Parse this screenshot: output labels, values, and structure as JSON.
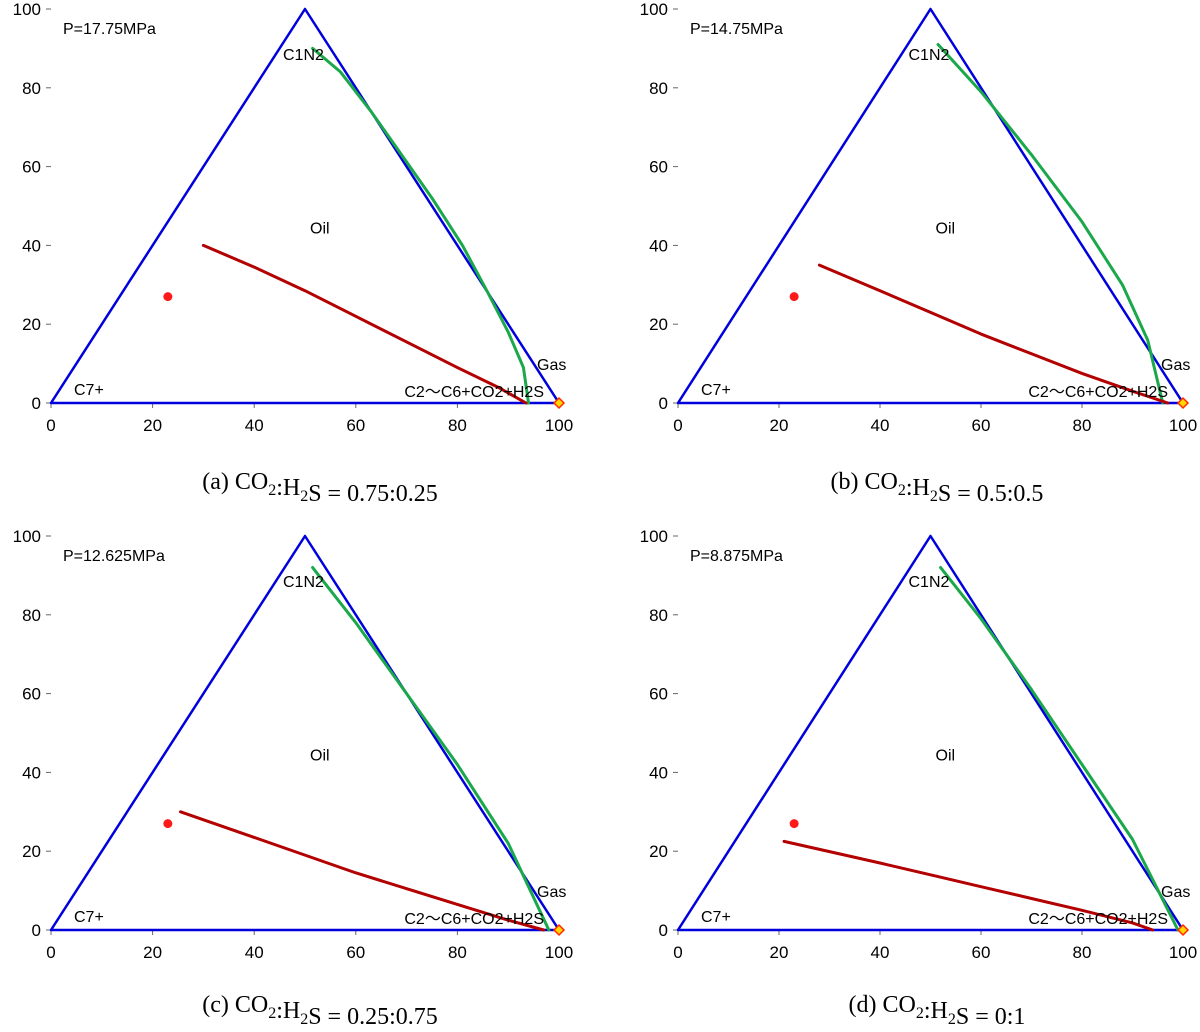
{
  "chart_data": [
    {
      "type": "line",
      "panel_caption": "(a) CO₂:H₂S = 0.75:0.25",
      "pressure_label": "P=17.75MPa",
      "xlim": [
        0,
        100
      ],
      "ylim": [
        0,
        100
      ],
      "xticks": [
        "0",
        "20",
        "40",
        "60",
        "80",
        "100"
      ],
      "yticks": [
        "0",
        "20",
        "40",
        "60",
        "80",
        "100"
      ],
      "annotations": {
        "apex": "C1N2",
        "left_vertex": "C7+",
        "right_vertex": "C2～C6+CO2+H2S",
        "region": "Oil",
        "gas": "Gas"
      },
      "series": [
        {
          "color": "#0000dd",
          "x": [
            0,
            50,
            100,
            0
          ],
          "y": [
            0,
            100,
            0,
            0
          ]
        },
        {
          "color": "#1aa84a",
          "x": [
            51.5,
            57,
            63,
            69,
            75,
            81,
            86,
            90,
            93,
            94
          ],
          "y": [
            90,
            84,
            74,
            63,
            52,
            40,
            28,
            18,
            9,
            0
          ]
        },
        {
          "color": "#b30000",
          "x": [
            30,
            40,
            50,
            60,
            70,
            80,
            88,
            93.5
          ],
          "y": [
            40,
            34.5,
            28.5,
            22,
            15.5,
            9,
            4,
            0
          ]
        },
        {
          "color": "#ff1a1a",
          "x": [
            23
          ],
          "y": [
            27
          ]
        },
        {
          "color": "#ffd700",
          "x": [
            100
          ],
          "y": [
            0
          ]
        }
      ]
    },
    {
      "type": "line",
      "panel_caption": "(b) CO₂:H₂S = 0.5:0.5",
      "pressure_label": "P=14.75MPa",
      "xlim": [
        0,
        100
      ],
      "ylim": [
        0,
        100
      ],
      "xticks": [
        "0",
        "20",
        "40",
        "60",
        "80",
        "100"
      ],
      "yticks": [
        "0",
        "20",
        "40",
        "60",
        "80",
        "100"
      ],
      "annotations": {
        "apex": "C1N2",
        "left_vertex": "C7+",
        "right_vertex": "C2～C6+CO2+H2S",
        "region": "Oil",
        "gas": "Gas"
      },
      "series": [
        {
          "color": "#0000dd",
          "x": [
            0,
            50,
            100,
            0
          ],
          "y": [
            0,
            100,
            0,
            0
          ]
        },
        {
          "color": "#1aa84a",
          "x": [
            51.5,
            60,
            70,
            80,
            88,
            93,
            96
          ],
          "y": [
            91,
            79,
            63,
            46,
            30,
            16,
            0
          ]
        },
        {
          "color": "#b30000",
          "x": [
            28,
            40,
            50,
            60,
            70,
            80,
            90,
            97
          ],
          "y": [
            35,
            28.5,
            23,
            17.5,
            12.5,
            7.5,
            3,
            0
          ]
        },
        {
          "color": "#ff1a1a",
          "x": [
            23
          ],
          "y": [
            27
          ]
        },
        {
          "color": "#ffd700",
          "x": [
            100
          ],
          "y": [
            0
          ]
        }
      ]
    },
    {
      "type": "line",
      "panel_caption": "(c) CO₂:H₂S = 0.25:0.75",
      "pressure_label": "P=12.625MPa",
      "xlim": [
        0,
        100
      ],
      "ylim": [
        0,
        100
      ],
      "xticks": [
        "0",
        "20",
        "40",
        "60",
        "80",
        "100"
      ],
      "yticks": [
        "0",
        "20",
        "40",
        "60",
        "80",
        "100"
      ],
      "annotations": {
        "apex": "C1N2",
        "left_vertex": "C7+",
        "right_vertex": "C2～C6+CO2+H2S",
        "region": "Oil",
        "gas": "Gas"
      },
      "series": [
        {
          "color": "#0000dd",
          "x": [
            0,
            50,
            100,
            0
          ],
          "y": [
            0,
            100,
            0,
            0
          ]
        },
        {
          "color": "#1aa84a",
          "x": [
            51.5,
            60,
            70,
            80,
            90,
            98
          ],
          "y": [
            92,
            78,
            60,
            42,
            22,
            0
          ]
        },
        {
          "color": "#b30000",
          "x": [
            25.5,
            40,
            50,
            60,
            70,
            80,
            90,
            97
          ],
          "y": [
            30,
            23.5,
            19,
            14.5,
            10.5,
            6.5,
            2.5,
            0
          ]
        },
        {
          "color": "#ff1a1a",
          "x": [
            23
          ],
          "y": [
            27
          ]
        },
        {
          "color": "#ffd700",
          "x": [
            100
          ],
          "y": [
            0
          ]
        }
      ]
    },
    {
      "type": "line",
      "panel_caption": "(d) CO₂:H₂S = 0:1",
      "pressure_label": "P=8.875MPa",
      "xlim": [
        0,
        100
      ],
      "ylim": [
        0,
        100
      ],
      "xticks": [
        "0",
        "20",
        "40",
        "60",
        "80",
        "100"
      ],
      "yticks": [
        "0",
        "20",
        "40",
        "60",
        "80",
        "100"
      ],
      "annotations": {
        "apex": "C1N2",
        "left_vertex": "C7+",
        "right_vertex": "C2～C6+CO2+H2S",
        "region": "Oil",
        "gas": "Gas"
      },
      "series": [
        {
          "color": "#0000dd",
          "x": [
            0,
            50,
            100,
            0
          ],
          "y": [
            0,
            100,
            0,
            0
          ]
        },
        {
          "color": "#1aa84a",
          "x": [
            52,
            60,
            70,
            80,
            90,
            99
          ],
          "y": [
            92,
            79,
            61,
            42,
            23,
            0
          ]
        },
        {
          "color": "#b30000",
          "x": [
            21,
            40,
            50,
            60,
            70,
            80,
            90,
            94
          ],
          "y": [
            22.5,
            17,
            14,
            11,
            8,
            5,
            1.8,
            0
          ]
        },
        {
          "color": "#ff1a1a",
          "x": [
            23
          ],
          "y": [
            27
          ]
        },
        {
          "color": "#ffd700",
          "x": [
            100
          ],
          "y": [
            0
          ]
        }
      ]
    }
  ]
}
